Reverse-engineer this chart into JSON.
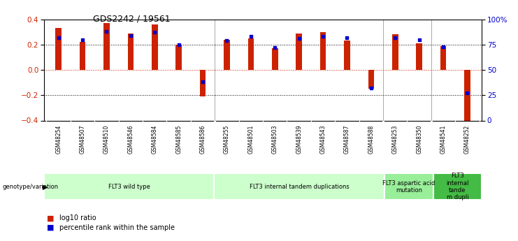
{
  "title": "GDS2242 / 19561",
  "samples": [
    "GSM48254",
    "GSM48507",
    "GSM48510",
    "GSM48546",
    "GSM48584",
    "GSM48585",
    "GSM48586",
    "GSM48255",
    "GSM48501",
    "GSM48503",
    "GSM48539",
    "GSM48543",
    "GSM48587",
    "GSM48588",
    "GSM48253",
    "GSM48350",
    "GSM48541",
    "GSM48252"
  ],
  "log10_ratio": [
    0.33,
    0.22,
    0.37,
    0.29,
    0.36,
    0.2,
    -0.21,
    0.24,
    0.25,
    0.17,
    0.29,
    0.3,
    0.23,
    -0.15,
    0.28,
    0.21,
    0.19,
    -0.4
  ],
  "percentile": [
    82,
    80,
    88,
    84,
    87,
    75,
    38,
    79,
    83,
    72,
    81,
    83,
    82,
    32,
    82,
    80,
    73,
    27
  ],
  "bar_color": "#cc2200",
  "dot_color": "#0000cc",
  "groups": [
    {
      "label": "FLT3 wild type",
      "start": 0,
      "end": 7,
      "color": "#ccffcc"
    },
    {
      "label": "FLT3 internal tandem duplications",
      "start": 7,
      "end": 14,
      "color": "#ccffcc"
    },
    {
      "label": "FLT3 aspartic acid\nmutation",
      "start": 14,
      "end": 16,
      "color": "#99ee99"
    },
    {
      "label": "FLT3\ninternal\ntande\nm dupli",
      "start": 16,
      "end": 18,
      "color": "#44bb44"
    }
  ],
  "ylim": [
    -0.4,
    0.4
  ],
  "yticks": [
    -0.4,
    -0.2,
    0.0,
    0.2,
    0.4
  ],
  "y2ticks": [
    0,
    25,
    50,
    75,
    100
  ],
  "hlines": [
    -0.2,
    0.0,
    0.2
  ],
  "background_color": "#ffffff",
  "tick_label_color_left": "#cc2200",
  "tick_label_color_right": "#0000cc"
}
